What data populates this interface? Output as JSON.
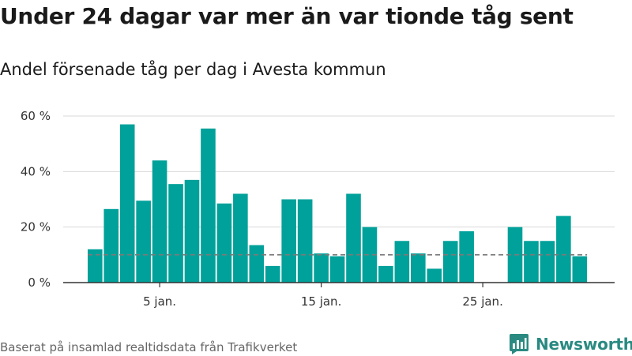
{
  "header": {
    "title": "Under 24 dagar var mer än var tionde tåg sent",
    "subtitle": "Andel försenade tåg per dag i Avesta kommun"
  },
  "footer": {
    "source": "Baserat på insamlad realtidsdata från Trafikverket",
    "brand": "Newsworthy"
  },
  "colors": {
    "bar": "#00a19a",
    "threshold_line": "#7a7a7a",
    "grid": "#d9d9d9",
    "axis": "#333333",
    "brand": "#2a8a82"
  },
  "chart_data": {
    "type": "bar",
    "categories": [
      "1",
      "2",
      "3",
      "4",
      "5",
      "6",
      "7",
      "8",
      "9",
      "10",
      "11",
      "12",
      "13",
      "14",
      "15",
      "16",
      "17",
      "18",
      "19",
      "20",
      "21",
      "22",
      "23",
      "24",
      "25",
      "26",
      "27",
      "28",
      "29",
      "30",
      "31"
    ],
    "values": [
      12,
      26.5,
      57,
      29.5,
      44,
      35.5,
      37,
      55.5,
      28.5,
      32,
      13.5,
      6,
      30,
      30,
      10.5,
      9.5,
      32,
      20,
      6,
      15,
      10.5,
      5,
      15,
      18.5,
      0,
      0,
      20,
      15,
      15,
      24,
      9.5
    ],
    "threshold": 10,
    "ylim": [
      0,
      63
    ],
    "yticks": [
      0,
      20,
      40,
      60
    ],
    "ytick_labels": [
      "0 %",
      "20 %",
      "40 %",
      "60 %"
    ],
    "xticks": [
      5,
      15,
      25
    ],
    "xtick_labels": [
      "5 jan.",
      "15 jan.",
      "25 jan."
    ],
    "grid": true
  }
}
